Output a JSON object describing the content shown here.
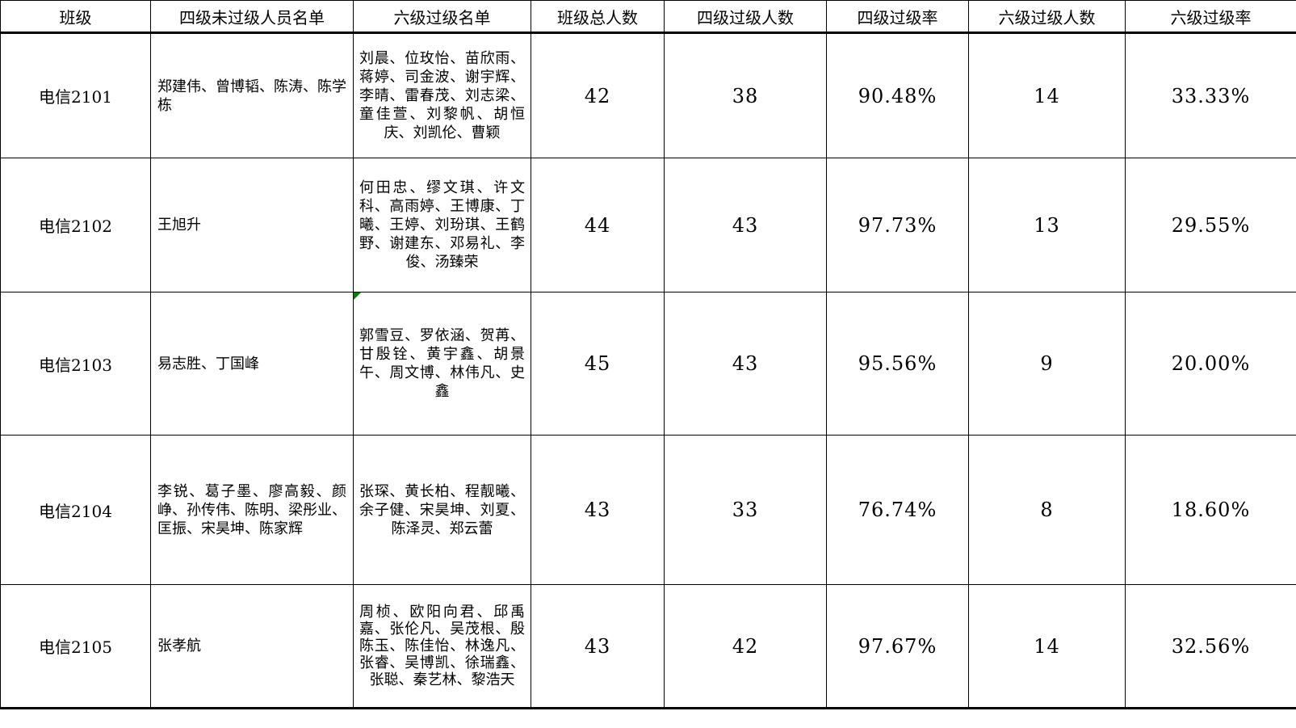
{
  "table": {
    "headers": [
      "班级",
      "四级未过级人员名单",
      "六级过级名单",
      "班级总人数",
      "四级过级人数",
      "四级过级率",
      "六级过级人数",
      "六级过级率"
    ],
    "rows": [
      {
        "class_name": "电信2101",
        "cet4_not_passed": "郑建伟、曾博韬、陈涛、陈学栋",
        "cet6_passed": "刘晨、位玫怡、苗欣雨、蒋婷、司金波、谢宇辉、李晴、雷春茂、刘志梁、童佳萱、刘黎帆、胡恒庆、刘凯伦、曹颖",
        "total": "42",
        "cet4_passed_count": "38",
        "cet4_rate": "90.48%",
        "cet6_passed_count": "14",
        "cet6_rate": "33.33%"
      },
      {
        "class_name": "电信2102",
        "cet4_not_passed": "王旭升",
        "cet6_passed": "何田忠、缪文琪、许文科、高雨婷、王博康、丁曦、王婷、刘玢琪、王鹤野、谢建东、邓易礼、李俊、汤臻荣",
        "total": "44",
        "cet4_passed_count": "43",
        "cet4_rate": "97.73%",
        "cet6_passed_count": "13",
        "cet6_rate": "29.55%"
      },
      {
        "class_name": "电信2103",
        "cet4_not_passed": "易志胜、丁国峰",
        "cet6_passed": "郭雪豆、罗依涵、贺苒、甘殷铨、黄宇鑫、胡景午、周文博、林伟凡、史鑫",
        "total": "45",
        "cet4_passed_count": "43",
        "cet4_rate": "95.56%",
        "cet6_passed_count": "9",
        "cet6_rate": "20.00%"
      },
      {
        "class_name": "电信2104",
        "cet4_not_passed": "李锐、葛子墨、廖高毅、颜峥、孙传伟、陈明、梁彤业、匡振、宋昊坤、陈家辉",
        "cet6_passed": "张琛、黄长柏、程靓曦、余子健、宋昊坤、刘夏、陈泽灵、郑云蕾",
        "total": "43",
        "cet4_passed_count": "33",
        "cet4_rate": "76.74%",
        "cet6_passed_count": "8",
        "cet6_rate": "18.60%"
      },
      {
        "class_name": "电信2105",
        "cet4_not_passed": "张孝航",
        "cet6_passed": "周桢、欧阳向君、邱禹嘉、张伦凡、吴茂根、殷陈玉、陈佳怡、林逸凡、张睿、吴博凯、徐瑞鑫、张聪、秦艺林、黎浩天",
        "total": "43",
        "cet4_passed_count": "42",
        "cet4_rate": "97.67%",
        "cet6_passed_count": "14",
        "cet6_rate": "32.56%"
      }
    ]
  },
  "annotations": {
    "error_marker": {
      "row_index": 2,
      "column": "cet6_passed",
      "color": "#008000"
    }
  },
  "colors": {
    "background": "#ffffff",
    "border": "#000000",
    "text": "#000000",
    "error_marker_green": "#008000"
  }
}
